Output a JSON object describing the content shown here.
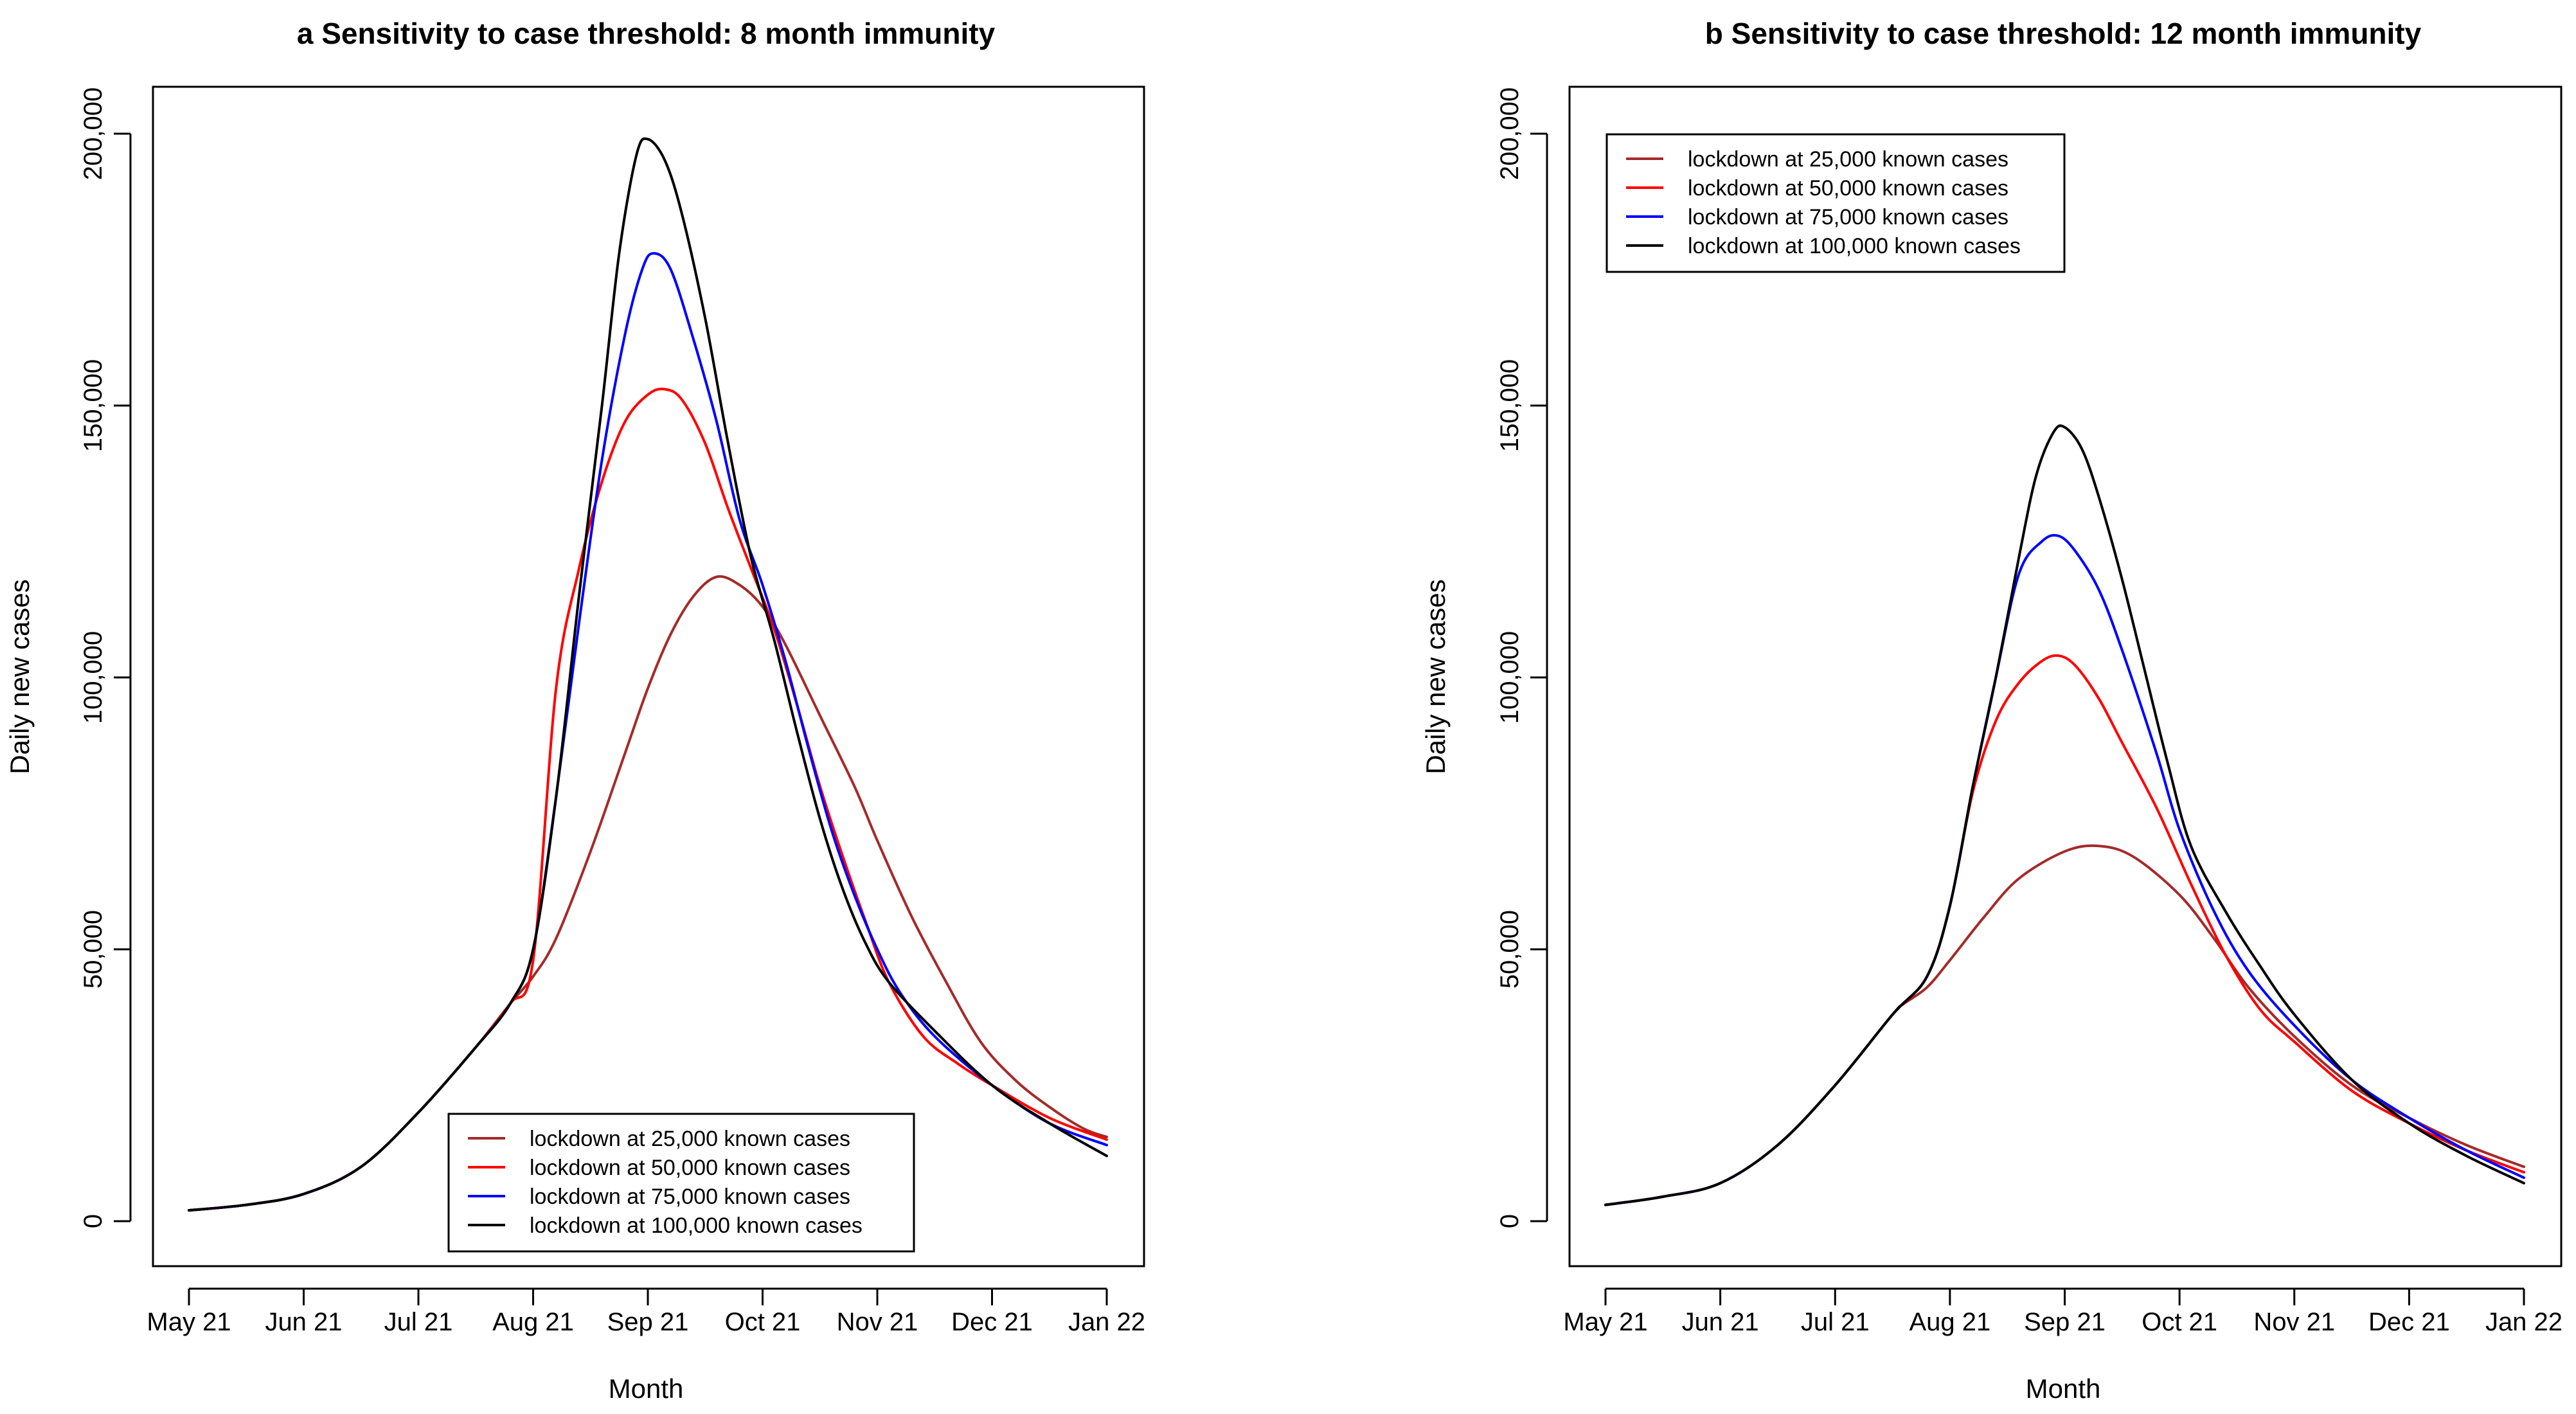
{
  "chart_data": [
    {
      "type": "line",
      "title": "a Sensitivity to case threshold: 8 month immunity",
      "xlabel": "Month",
      "ylabel": "Daily new cases",
      "x_ticks": [
        "May 21",
        "Jun 21",
        "Jul 21",
        "Aug 21",
        "Sep 21",
        "Oct 21",
        "Nov 21",
        "Dec 21",
        "Jan 22"
      ],
      "y_ticks": [
        "0",
        "50,000",
        "100,000",
        "150,000",
        "200,000"
      ],
      "ylim": [
        0,
        200000
      ],
      "legend_position": "bottom-center",
      "series": [
        {
          "name": "lockdown at 25,000 known cases",
          "color": "#a52a2a",
          "points": [
            [
              0,
              2000
            ],
            [
              0.5,
              3000
            ],
            [
              1,
              5000
            ],
            [
              1.5,
              10000
            ],
            [
              2,
              20000
            ],
            [
              2.5,
              32000
            ],
            [
              2.8,
              40000
            ],
            [
              3,
              45000
            ],
            [
              3.2,
              52000
            ],
            [
              3.5,
              68000
            ],
            [
              3.8,
              86000
            ],
            [
              4,
              98000
            ],
            [
              4.2,
              108000
            ],
            [
              4.4,
              115000
            ],
            [
              4.6,
              118500
            ],
            [
              4.8,
              117000
            ],
            [
              5,
              113000
            ],
            [
              5.2,
              106000
            ],
            [
              5.5,
              93000
            ],
            [
              5.8,
              80000
            ],
            [
              6,
              70000
            ],
            [
              6.3,
              56000
            ],
            [
              6.6,
              44000
            ],
            [
              6.9,
              33000
            ],
            [
              7.2,
              26000
            ],
            [
              7.5,
              21000
            ],
            [
              7.8,
              17000
            ],
            [
              8,
              15500
            ]
          ]
        },
        {
          "name": "lockdown at 50,000 known cases",
          "color": "#ff0000",
          "points": [
            [
              0,
              2000
            ],
            [
              0.5,
              3000
            ],
            [
              1,
              5000
            ],
            [
              1.5,
              10000
            ],
            [
              2,
              20000
            ],
            [
              2.5,
              32000
            ],
            [
              2.8,
              40000
            ],
            [
              3,
              48000
            ],
            [
              3.2,
              98000
            ],
            [
              3.4,
              120000
            ],
            [
              3.6,
              136000
            ],
            [
              3.8,
              147000
            ],
            [
              4,
              152000
            ],
            [
              4.15,
              153000
            ],
            [
              4.3,
              151000
            ],
            [
              4.5,
              143000
            ],
            [
              4.7,
              131000
            ],
            [
              4.9,
              120000
            ],
            [
              5.1,
              109000
            ],
            [
              5.3,
              95000
            ],
            [
              5.5,
              80000
            ],
            [
              5.7,
              67000
            ],
            [
              5.9,
              55000
            ],
            [
              6.1,
              44000
            ],
            [
              6.4,
              34000
            ],
            [
              6.7,
              29000
            ],
            [
              7,
              25000
            ],
            [
              7.5,
              19000
            ],
            [
              8,
              15000
            ]
          ]
        },
        {
          "name": "lockdown at 75,000 known cases",
          "color": "#0000ff",
          "points": [
            [
              0,
              2000
            ],
            [
              0.5,
              3000
            ],
            [
              1,
              5000
            ],
            [
              1.5,
              10000
            ],
            [
              2,
              20000
            ],
            [
              2.5,
              32000
            ],
            [
              2.8,
              40000
            ],
            [
              3,
              50000
            ],
            [
              3.2,
              78000
            ],
            [
              3.4,
              110000
            ],
            [
              3.6,
              140000
            ],
            [
              3.8,
              163000
            ],
            [
              3.95,
              175000
            ],
            [
              4.05,
              178000
            ],
            [
              4.2,
              175000
            ],
            [
              4.4,
              162000
            ],
            [
              4.6,
              147000
            ],
            [
              4.8,
              129000
            ],
            [
              5,
              117000
            ],
            [
              5.2,
              103000
            ],
            [
              5.4,
              87000
            ],
            [
              5.6,
              72000
            ],
            [
              5.8,
              60000
            ],
            [
              6,
              50000
            ],
            [
              6.2,
              42000
            ],
            [
              6.5,
              34000
            ],
            [
              7,
              25000
            ],
            [
              7.5,
              18000
            ],
            [
              8,
              14000
            ]
          ]
        },
        {
          "name": "lockdown at 100,000 known cases",
          "color": "#000000",
          "points": [
            [
              0,
              2000
            ],
            [
              0.5,
              3000
            ],
            [
              1,
              5000
            ],
            [
              1.5,
              10000
            ],
            [
              2,
              20000
            ],
            [
              2.5,
              32000
            ],
            [
              2.8,
              40000
            ],
            [
              3,
              50000
            ],
            [
              3.2,
              78000
            ],
            [
              3.4,
              115000
            ],
            [
              3.6,
              150000
            ],
            [
              3.75,
              178000
            ],
            [
              3.9,
              196000
            ],
            [
              4,
              199000
            ],
            [
              4.15,
              195000
            ],
            [
              4.3,
              185000
            ],
            [
              4.5,
              166000
            ],
            [
              4.7,
              143000
            ],
            [
              4.9,
              122000
            ],
            [
              5.1,
              107000
            ],
            [
              5.3,
              90000
            ],
            [
              5.5,
              74000
            ],
            [
              5.7,
              61000
            ],
            [
              5.9,
              51000
            ],
            [
              6.1,
              44000
            ],
            [
              6.5,
              35000
            ],
            [
              7,
              25000
            ],
            [
              7.5,
              18000
            ],
            [
              8,
              12000
            ]
          ]
        }
      ]
    },
    {
      "type": "line",
      "title": "b Sensitivity to case threshold: 12 month immunity",
      "xlabel": "Month",
      "ylabel": "Daily new cases",
      "x_ticks": [
        "May 21",
        "Jun 21",
        "Jul 21",
        "Aug 21",
        "Sep 21",
        "Oct 21",
        "Nov 21",
        "Dec 21",
        "Jan 22"
      ],
      "y_ticks": [
        "0",
        "50,000",
        "100,000",
        "150,000",
        "200,000"
      ],
      "ylim": [
        0,
        200000
      ],
      "legend_position": "top-left",
      "series": [
        {
          "name": "lockdown at 25,000 known cases",
          "color": "#a52a2a",
          "points": [
            [
              0,
              3000
            ],
            [
              0.5,
              4500
            ],
            [
              1,
              7000
            ],
            [
              1.5,
              14000
            ],
            [
              2,
              25000
            ],
            [
              2.5,
              38000
            ],
            [
              2.6,
              40000
            ],
            [
              2.8,
              43000
            ],
            [
              3,
              48000
            ],
            [
              3.3,
              56000
            ],
            [
              3.6,
              63000
            ],
            [
              4,
              68000
            ],
            [
              4.3,
              69000
            ],
            [
              4.6,
              67000
            ],
            [
              5,
              60000
            ],
            [
              5.3,
              52000
            ],
            [
              5.6,
              43000
            ],
            [
              6,
              34000
            ],
            [
              6.5,
              25000
            ],
            [
              7,
              19000
            ],
            [
              7.5,
              14000
            ],
            [
              8,
              10000
            ]
          ]
        },
        {
          "name": "lockdown at 50,000 known cases",
          "color": "#ff0000",
          "points": [
            [
              0,
              3000
            ],
            [
              0.5,
              4500
            ],
            [
              1,
              7000
            ],
            [
              1.5,
              14000
            ],
            [
              2,
              25000
            ],
            [
              2.5,
              38000
            ],
            [
              2.8,
              45000
            ],
            [
              3,
              58000
            ],
            [
              3.2,
              79000
            ],
            [
              3.4,
              92000
            ],
            [
              3.6,
              99000
            ],
            [
              3.8,
              103000
            ],
            [
              3.95,
              104000
            ],
            [
              4.1,
              102000
            ],
            [
              4.3,
              96000
            ],
            [
              4.5,
              88000
            ],
            [
              4.8,
              76000
            ],
            [
              5.1,
              62000
            ],
            [
              5.4,
              49000
            ],
            [
              5.7,
              39000
            ],
            [
              6,
              33000
            ],
            [
              6.5,
              24000
            ],
            [
              7,
              18000
            ],
            [
              7.5,
              13000
            ],
            [
              8,
              9000
            ]
          ]
        },
        {
          "name": "lockdown at 75,000 known cases",
          "color": "#0000ff",
          "points": [
            [
              0,
              3000
            ],
            [
              0.5,
              4500
            ],
            [
              1,
              7000
            ],
            [
              1.5,
              14000
            ],
            [
              2,
              25000
            ],
            [
              2.5,
              38000
            ],
            [
              2.8,
              45000
            ],
            [
              3,
              58000
            ],
            [
              3.2,
              80000
            ],
            [
              3.4,
              100000
            ],
            [
              3.6,
              119000
            ],
            [
              3.8,
              125000
            ],
            [
              3.95,
              126000
            ],
            [
              4.1,
              123000
            ],
            [
              4.3,
              116000
            ],
            [
              4.5,
              105000
            ],
            [
              4.8,
              86000
            ],
            [
              5,
              72000
            ],
            [
              5.3,
              57000
            ],
            [
              5.6,
              46000
            ],
            [
              6,
              36000
            ],
            [
              6.5,
              26000
            ],
            [
              7,
              19000
            ],
            [
              7.5,
              13000
            ],
            [
              8,
              8000
            ]
          ]
        },
        {
          "name": "lockdown at 100,000 known cases",
          "color": "#000000",
          "points": [
            [
              0,
              3000
            ],
            [
              0.5,
              4500
            ],
            [
              1,
              7000
            ],
            [
              1.5,
              14000
            ],
            [
              2,
              25000
            ],
            [
              2.5,
              38000
            ],
            [
              2.8,
              45000
            ],
            [
              3,
              58000
            ],
            [
              3.2,
              80000
            ],
            [
              3.4,
              100000
            ],
            [
              3.6,
              122000
            ],
            [
              3.75,
              137000
            ],
            [
              3.9,
              145000
            ],
            [
              4,
              146000
            ],
            [
              4.15,
              142000
            ],
            [
              4.3,
              133000
            ],
            [
              4.5,
              118000
            ],
            [
              4.7,
              101000
            ],
            [
              4.9,
              84000
            ],
            [
              5.1,
              69000
            ],
            [
              5.4,
              57000
            ],
            [
              5.7,
              47000
            ],
            [
              6,
              38000
            ],
            [
              6.5,
              26000
            ],
            [
              7,
              18000
            ],
            [
              7.5,
              12000
            ],
            [
              8,
              7000
            ]
          ]
        }
      ]
    }
  ]
}
